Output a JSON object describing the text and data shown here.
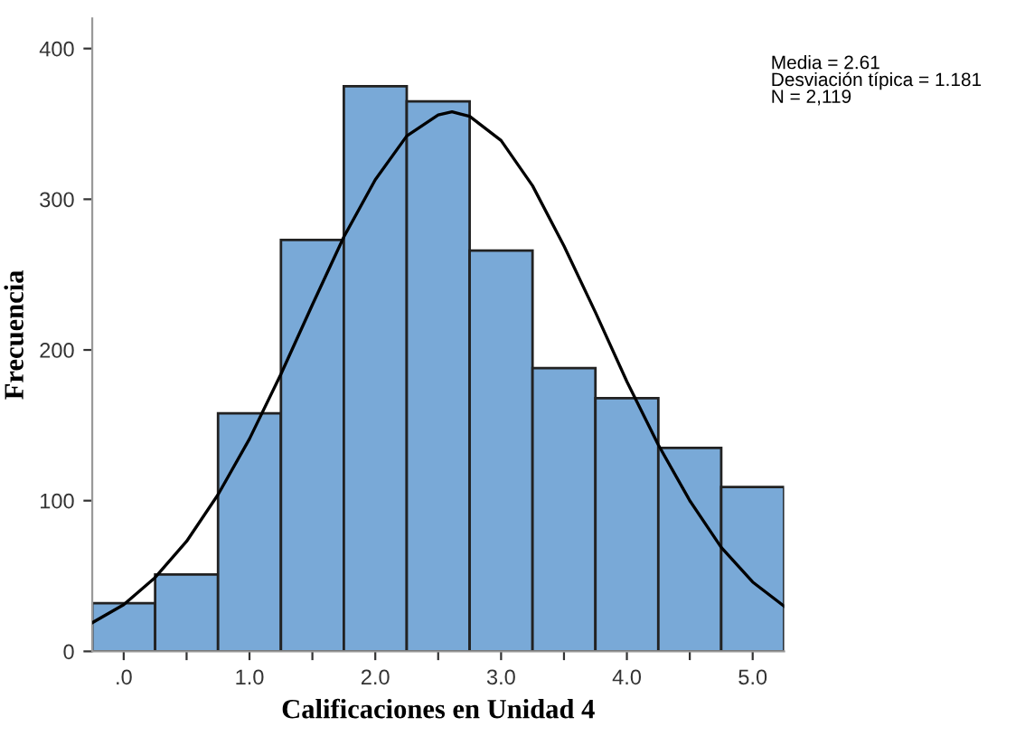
{
  "chart_data": {
    "type": "histogram",
    "xlabel": "Calificaciones en Unidad 4",
    "ylabel": "Frecuencia",
    "annotations": [
      "Media = 2.61\nDesviación típica = 1.181\nN = 2,119"
    ],
    "series": [
      {
        "color": "#79a9d7",
        "bins": [
          -0.25,
          0.25,
          0.75,
          1.25,
          1.75,
          2.25,
          2.75,
          3.25,
          3.75,
          4.25,
          4.75,
          5.25
        ],
        "values": [
          32,
          51,
          158,
          273,
          375,
          365,
          266,
          188,
          168,
          135,
          109
        ]
      },
      {
        "type": "line",
        "color": "#000000",
        "x": [
          -0.25,
          0,
          0.25,
          0.5,
          0.75,
          1,
          1.25,
          1.5,
          1.75,
          2,
          2.25,
          2.5,
          2.61,
          2.75,
          3,
          3.25,
          3.5,
          3.75,
          4,
          4.25,
          4.5,
          4.75,
          5,
          5.25
        ],
        "values": [
          19,
          31,
          49,
          73,
          104,
          141,
          184,
          230,
          275,
          313,
          342,
          356,
          358,
          355,
          339,
          309,
          269,
          225,
          179,
          137,
          100,
          69,
          46,
          30
        ]
      }
    ],
    "xlim": [
      -0.25,
      5.25
    ],
    "ylim": [
      0,
      420
    ],
    "xticks": [
      {
        "value": 0,
        "label": ".0"
      },
      {
        "value": 0.5,
        "label": null
      },
      {
        "value": 1,
        "label": "1.0"
      },
      {
        "value": 1.5,
        "label": null
      },
      {
        "value": 2,
        "label": "2.0"
      },
      {
        "value": 2.5,
        "label": null
      },
      {
        "value": 3,
        "label": "3.0"
      },
      {
        "value": 3.5,
        "label": null
      },
      {
        "value": 4,
        "label": "4.0"
      },
      {
        "value": 4.5,
        "label": null
      },
      {
        "value": 5,
        "label": "5.0"
      }
    ],
    "yticks": [
      0,
      100,
      200,
      300,
      400
    ],
    "grid": false,
    "legend": false,
    "marker": "none",
    "line_style": "solid"
  }
}
